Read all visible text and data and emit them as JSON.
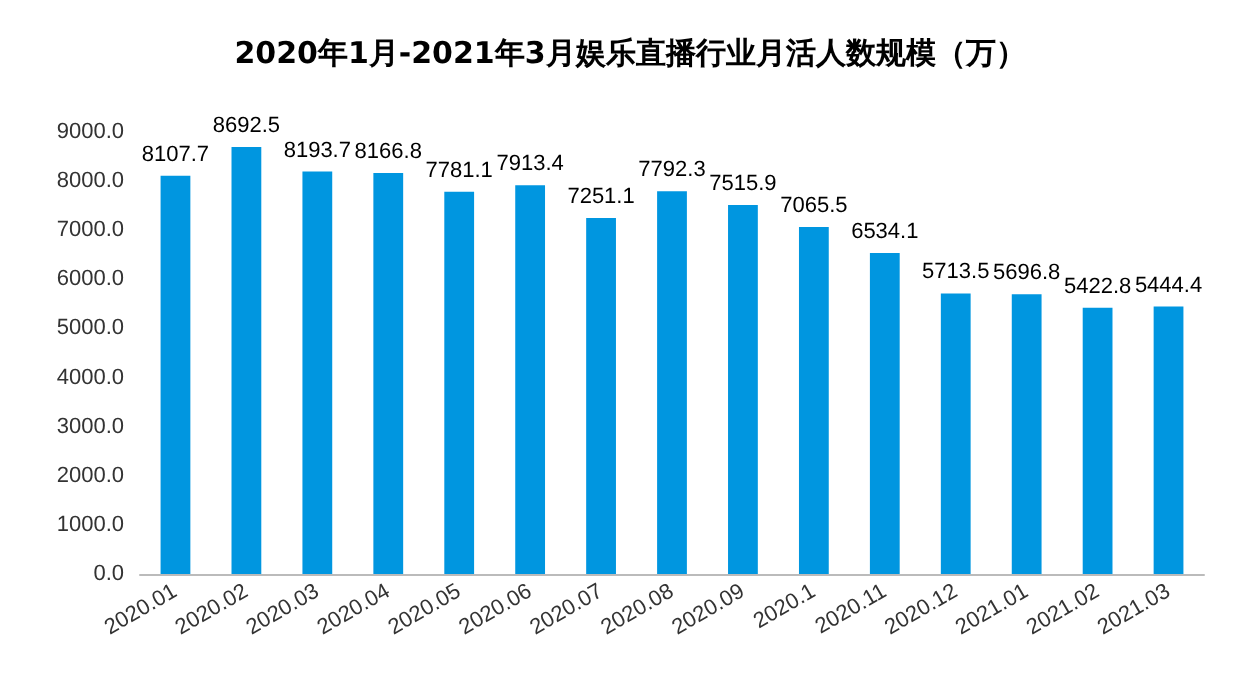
{
  "chart_data": {
    "type": "bar",
    "title": "2020年1月-2021年3月娱乐直播行业月活人数规模（万）",
    "categories": [
      "2020.01",
      "2020.02",
      "2020.03",
      "2020.04",
      "2020.05",
      "2020.06",
      "2020.07",
      "2020.08",
      "2020.09",
      "2020.1",
      "2020.11",
      "2020.12",
      "2021.01",
      "2021.02",
      "2021.03"
    ],
    "values": [
      8107.7,
      8692.5,
      8193.7,
      8166.8,
      7781.1,
      7913.4,
      7251.1,
      7792.3,
      7515.9,
      7065.5,
      6534.1,
      5713.5,
      5696.8,
      5422.8,
      5444.4
    ],
    "color": "#0096e0",
    "ylim": [
      0,
      9000
    ],
    "yticks": [
      {
        "value": 0,
        "label": "0.0"
      },
      {
        "value": 1000,
        "label": "1000.0"
      },
      {
        "value": 2000,
        "label": "2000.0"
      },
      {
        "value": 3000,
        "label": "3000.0"
      },
      {
        "value": 4000,
        "label": "4000.0"
      },
      {
        "value": 5000,
        "label": "5000.0"
      },
      {
        "value": 6000,
        "label": "6000.0"
      },
      {
        "value": 7000,
        "label": "7000.0"
      },
      {
        "value": 8000,
        "label": "8000.0"
      },
      {
        "value": 9000,
        "label": "9000.0"
      }
    ],
    "data_labels": true,
    "grid": false
  }
}
